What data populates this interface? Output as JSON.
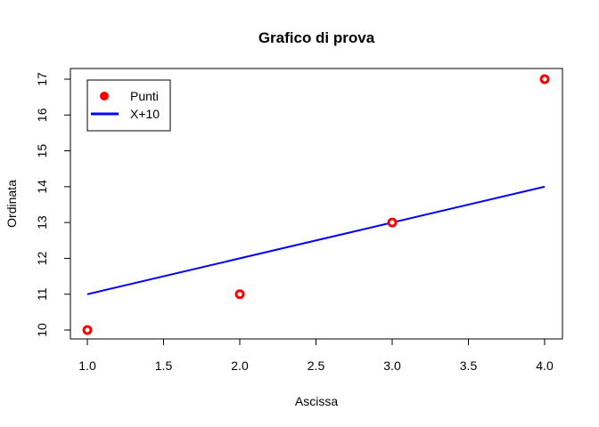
{
  "chart_data": {
    "type": "scatter",
    "title": "Grafico di prova",
    "xlabel": "Ascissa",
    "ylabel": "Ordinata",
    "xlim": [
      1.0,
      4.0
    ],
    "ylim": [
      10,
      17
    ],
    "x_ticks": [
      "1.0",
      "1.5",
      "2.0",
      "2.5",
      "3.0",
      "3.5",
      "4.0"
    ],
    "y_ticks": [
      "10",
      "11",
      "12",
      "13",
      "14",
      "15",
      "16",
      "17"
    ],
    "grid": false,
    "legend_position": "top-left",
    "series": [
      {
        "name": "Punti",
        "kind": "points",
        "color": "#ff0000",
        "x": [
          1,
          2,
          3,
          4
        ],
        "y": [
          10,
          11,
          13,
          17
        ]
      },
      {
        "name": "X+10",
        "kind": "line",
        "color": "#0000ff",
        "x": [
          1,
          4
        ],
        "y": [
          11,
          14
        ]
      }
    ]
  }
}
